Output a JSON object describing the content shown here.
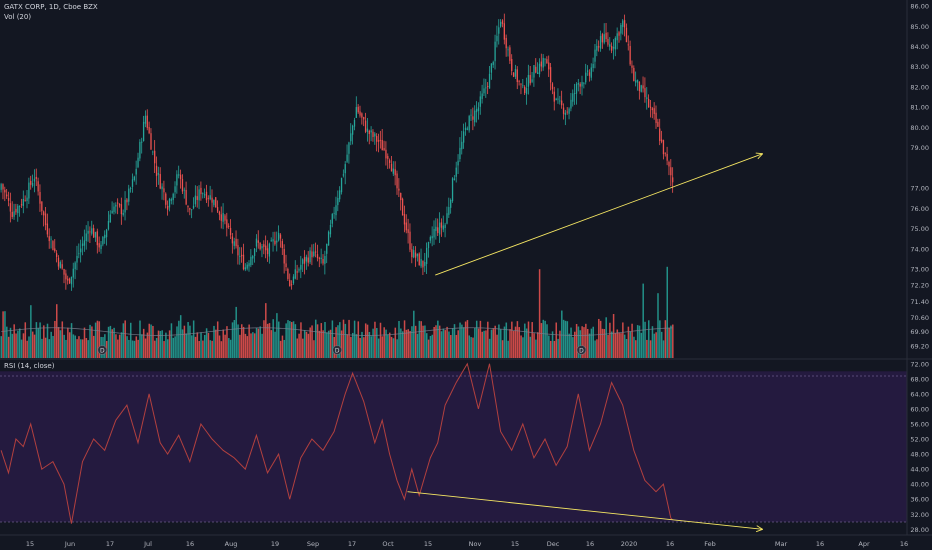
{
  "legend": {
    "symbol": "GATX CORP, 1D, Cboe BZX",
    "volume": "Vol (20)",
    "rsi": "RSI (14, close)"
  },
  "colors": {
    "background": "#131722",
    "up": "#26a69a",
    "down": "#ef5350",
    "trendline": "#f5e663",
    "rsi_line": "#b2403f",
    "rsi_band": "#241a3f"
  },
  "dividend_marker": "D",
  "chart_data": [
    {
      "type": "candlestick",
      "title": "GATX CORP, 1D, Cboe BZX",
      "ylim": [
        68.6,
        86.3
      ],
      "y_ticks": [
        "86.00",
        "85.00",
        "84.00",
        "83.00",
        "82.00",
        "81.00",
        "80.00",
        "79.00",
        "77.00",
        "76.00",
        "75.00",
        "74.00",
        "73.00",
        "72.20",
        "71.40",
        "70.60",
        "69.90",
        "69.20"
      ],
      "x_ticks": [
        "15",
        "Jun",
        "17",
        "Jul",
        "16",
        "Aug",
        "19",
        "Sep",
        "17",
        "Oct",
        "15",
        "Nov",
        "15",
        "Dec",
        "16",
        "2020",
        "16",
        "Feb",
        "Mar",
        "16",
        "Apr",
        "16"
      ],
      "price_anchors": [
        [
          0,
          77.2
        ],
        [
          6,
          75.8
        ],
        [
          12,
          76.4
        ],
        [
          18,
          77.6
        ],
        [
          24,
          75.2
        ],
        [
          30,
          73.6
        ],
        [
          36,
          72.3
        ],
        [
          42,
          73.8
        ],
        [
          48,
          75.1
        ],
        [
          54,
          74.0
        ],
        [
          60,
          76.1
        ],
        [
          66,
          75.9
        ],
        [
          72,
          77.5
        ],
        [
          78,
          80.6
        ],
        [
          84,
          77.8
        ],
        [
          90,
          76.2
        ],
        [
          96,
          77.7
        ],
        [
          102,
          75.8
        ],
        [
          108,
          76.9
        ],
        [
          114,
          76.5
        ],
        [
          120,
          75.5
        ],
        [
          126,
          74.1
        ],
        [
          132,
          73.1
        ],
        [
          138,
          74.3
        ],
        [
          144,
          73.8
        ],
        [
          150,
          74.8
        ],
        [
          156,
          72.2
        ],
        [
          162,
          73.2
        ],
        [
          168,
          73.8
        ],
        [
          174,
          73.2
        ],
        [
          180,
          75.9
        ],
        [
          186,
          78.2
        ],
        [
          192,
          81.0
        ],
        [
          198,
          79.8
        ],
        [
          204,
          79.3
        ],
        [
          210,
          78.5
        ],
        [
          216,
          76.2
        ],
        [
          222,
          73.8
        ],
        [
          228,
          73.2
        ],
        [
          234,
          74.9
        ],
        [
          240,
          75.2
        ],
        [
          246,
          78.2
        ],
        [
          252,
          80.2
        ],
        [
          258,
          81.0
        ],
        [
          264,
          82.5
        ],
        [
          270,
          85.4
        ],
        [
          276,
          83.0
        ],
        [
          282,
          81.8
        ],
        [
          288,
          82.8
        ],
        [
          294,
          83.4
        ],
        [
          300,
          81.2
        ],
        [
          306,
          80.8
        ],
        [
          312,
          82.2
        ],
        [
          318,
          82.6
        ],
        [
          324,
          84.5
        ],
        [
          330,
          84.0
        ],
        [
          336,
          85.2
        ],
        [
          342,
          82.4
        ],
        [
          348,
          81.5
        ],
        [
          354,
          80.2
        ],
        [
          360,
          78.2
        ],
        [
          363,
          77.3
        ]
      ],
      "annotation": {
        "type": "trendline",
        "from": {
          "bar": 235,
          "value": 72.7
        },
        "to": {
          "bar": 412,
          "value": 78.7
        }
      }
    },
    {
      "type": "bar",
      "title": "Vol (20)",
      "tall_bars": [
        {
          "bar": 291,
          "value": 1.85
        },
        {
          "bar": 347,
          "value": 1.55
        },
        {
          "bar": 355,
          "value": 1.35
        },
        {
          "bar": 360,
          "value": 1.9
        }
      ]
    },
    {
      "type": "line",
      "title": "RSI (14, close)",
      "ylim": [
        26.5,
        73
      ],
      "band": [
        30,
        70
      ],
      "y_ticks": [
        "72.00",
        "68.00",
        "64.00",
        "60.00",
        "56.00",
        "52.00",
        "48.00",
        "44.00",
        "40.00",
        "36.00",
        "32.00",
        "28.00"
      ],
      "rsi_anchors": [
        [
          0,
          49
        ],
        [
          4,
          43
        ],
        [
          8,
          52
        ],
        [
          12,
          50
        ],
        [
          16,
          56
        ],
        [
          22,
          44
        ],
        [
          28,
          46
        ],
        [
          34,
          40
        ],
        [
          38,
          29.5
        ],
        [
          44,
          46
        ],
        [
          50,
          52
        ],
        [
          56,
          49
        ],
        [
          62,
          57
        ],
        [
          68,
          61
        ],
        [
          74,
          51
        ],
        [
          80,
          64
        ],
        [
          86,
          51
        ],
        [
          90,
          48
        ],
        [
          96,
          53
        ],
        [
          102,
          46
        ],
        [
          108,
          56
        ],
        [
          114,
          52
        ],
        [
          120,
          49
        ],
        [
          126,
          47
        ],
        [
          132,
          44
        ],
        [
          138,
          53
        ],
        [
          144,
          43
        ],
        [
          150,
          48
        ],
        [
          156,
          36
        ],
        [
          162,
          47
        ],
        [
          168,
          52
        ],
        [
          174,
          49
        ],
        [
          180,
          54
        ],
        [
          186,
          64
        ],
        [
          190,
          69.5
        ],
        [
          196,
          62
        ],
        [
          202,
          51
        ],
        [
          206,
          57
        ],
        [
          210,
          48
        ],
        [
          214,
          41
        ],
        [
          218,
          36
        ],
        [
          222,
          44
        ],
        [
          226,
          37
        ],
        [
          232,
          47
        ],
        [
          236,
          51
        ],
        [
          240,
          61
        ],
        [
          246,
          67
        ],
        [
          252,
          72
        ],
        [
          258,
          60
        ],
        [
          264,
          72
        ],
        [
          270,
          54
        ],
        [
          276,
          49
        ],
        [
          282,
          56
        ],
        [
          288,
          47
        ],
        [
          294,
          52
        ],
        [
          300,
          45
        ],
        [
          306,
          50
        ],
        [
          312,
          64
        ],
        [
          318,
          49
        ],
        [
          324,
          56
        ],
        [
          330,
          67
        ],
        [
          336,
          61
        ],
        [
          342,
          49
        ],
        [
          348,
          41
        ],
        [
          354,
          38
        ],
        [
          358,
          40
        ],
        [
          362,
          31
        ],
        [
          363,
          30.5
        ]
      ],
      "annotation": {
        "type": "trendline",
        "from": {
          "bar": 220,
          "value": 38.0
        },
        "to": {
          "bar": 412,
          "value": 28.0
        }
      }
    }
  ]
}
